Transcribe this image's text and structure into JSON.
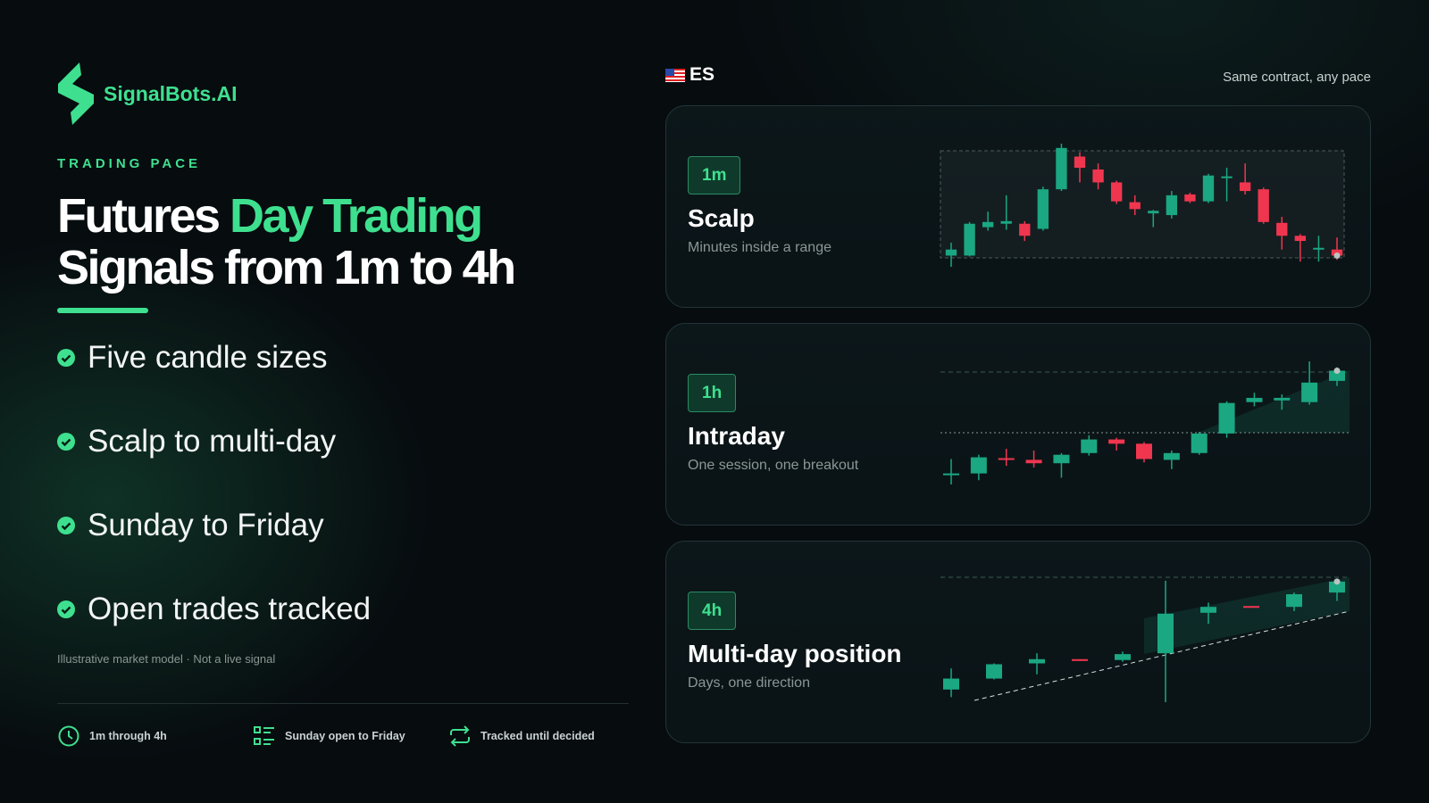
{
  "brand": "SignalBots.AI",
  "eyebrow": "TRADING PACE",
  "headline": {
    "line1_plain": "Futures",
    "line1_accent": "Day Trading",
    "line2": "Signals from 1m to 4h"
  },
  "bullets": [
    "Five candle sizes",
    "Scalp to multi-day",
    "Sunday to Friday",
    "Open trades tracked"
  ],
  "disclaimer": "Illustrative market model · Not a live signal",
  "footer": [
    "1m through 4h",
    "Sunday open to Friday",
    "Tracked until decided"
  ],
  "panel": {
    "symbol": "ES",
    "tagline": "Same contract, any pace",
    "cards": [
      {
        "badge": "1m",
        "title": "Scalp",
        "subtitle": "Minutes inside a range",
        "candles": [
          [
            15,
            30,
            2,
            22
          ],
          [
            15,
            54,
            14,
            52
          ],
          [
            48,
            66,
            44,
            54
          ],
          [
            52,
            85,
            45,
            55
          ],
          [
            52,
            55,
            32,
            38
          ],
          [
            46,
            95,
            44,
            92
          ],
          [
            92,
            145,
            90,
            140
          ],
          [
            130,
            135,
            100,
            117
          ],
          [
            115,
            122,
            92,
            100
          ],
          [
            100,
            102,
            75,
            78
          ],
          [
            77,
            85,
            62,
            69
          ],
          [
            64,
            68,
            48,
            67
          ],
          [
            62,
            90,
            58,
            85
          ],
          [
            86,
            88,
            76,
            78
          ],
          [
            78,
            110,
            76,
            108
          ],
          [
            105,
            117,
            78,
            107
          ],
          [
            100,
            122,
            86,
            90
          ],
          [
            92,
            94,
            52,
            54
          ],
          [
            53,
            60,
            22,
            38
          ],
          [
            38,
            40,
            8,
            32
          ],
          [
            22,
            38,
            8,
            24
          ],
          [
            22,
            36,
            10,
            15
          ]
        ]
      },
      {
        "badge": "1h",
        "title": "Intraday",
        "subtitle": "One session, one breakout",
        "candles": [
          [
            71,
            90,
            60,
            73
          ],
          [
            73,
            95,
            65,
            92
          ],
          [
            91,
            102,
            82,
            89
          ],
          [
            89,
            100,
            80,
            85
          ],
          [
            85,
            97,
            68,
            95
          ],
          [
            97,
            118,
            94,
            113
          ],
          [
            113,
            115,
            100,
            108
          ],
          [
            108,
            110,
            86,
            90
          ],
          [
            89,
            100,
            78,
            97
          ],
          [
            97,
            122,
            95,
            120
          ],
          [
            120,
            158,
            115,
            156
          ],
          [
            157,
            168,
            152,
            162
          ],
          [
            159,
            166,
            148,
            162
          ],
          [
            157,
            205,
            154,
            180
          ],
          [
            182,
            198,
            176,
            194
          ]
        ]
      },
      {
        "badge": "4h",
        "title": "Multi-day position",
        "subtitle": "Days, one direction",
        "candles": [
          [
            37,
            62,
            28,
            50
          ],
          [
            50,
            68,
            49,
            67
          ],
          [
            68,
            80,
            55,
            73
          ],
          [
            73,
            73,
            71,
            71
          ],
          [
            72,
            82,
            70,
            79
          ],
          [
            80,
            166,
            22,
            127
          ],
          [
            128,
            140,
            115,
            135
          ],
          [
            136,
            136,
            134,
            134
          ],
          [
            135,
            152,
            130,
            150
          ],
          [
            152,
            168,
            142,
            165
          ]
        ]
      }
    ]
  }
}
